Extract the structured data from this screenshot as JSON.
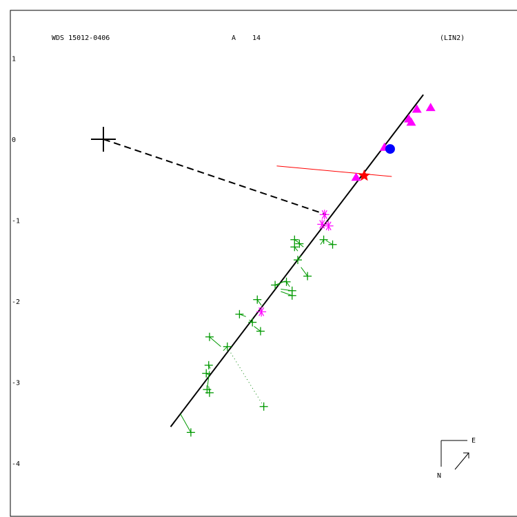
{
  "header": {
    "id": "WDS 15012-0406",
    "component": "A",
    "number": "14",
    "tag": "(LIN2)"
  },
  "compass": {
    "east": "E",
    "north": "N"
  },
  "chart_data": {
    "type": "scatter",
    "ylim": [
      -4.6,
      1.6
    ],
    "y_ticks": [
      1,
      0,
      -1,
      -2,
      -3,
      -4
    ],
    "primary": {
      "x": 0,
      "y": 0
    },
    "orbit_line": {
      "start": [
        0.83,
        -3.55
      ],
      "end": [
        3.95,
        0.55
      ],
      "color": "#000000"
    },
    "periastron_line": {
      "start": [
        0.0,
        0.0
      ],
      "end": [
        2.75,
        -0.93
      ],
      "color": "#000000"
    },
    "red_line": {
      "start": [
        2.14,
        -0.33
      ],
      "end": [
        3.56,
        -0.46
      ],
      "color": "#ff0000"
    },
    "dotted_line": {
      "start": [
        1.55,
        -2.6
      ],
      "end": [
        1.98,
        -3.3
      ],
      "color": "#008000"
    },
    "series": [
      {
        "marker": "plus",
        "color": "#009900",
        "points": [
          {
            "x": 2.36,
            "y": -1.24,
            "rx": 2.43,
            "ry": -1.29
          },
          {
            "x": 2.42,
            "y": -1.29,
            "rx": 2.47,
            "ry": -1.33
          },
          {
            "x": 2.36,
            "y": -1.33,
            "rx": 2.4,
            "ry": -1.38
          },
          {
            "x": 2.72,
            "y": -1.24,
            "rx": 2.68,
            "ry": -1.3
          },
          {
            "x": 2.83,
            "y": -1.3,
            "rx": 2.75,
            "ry": -1.25
          },
          {
            "x": 2.4,
            "y": -1.49,
            "rx": 2.44,
            "ry": -1.44
          },
          {
            "x": 2.52,
            "y": -1.69,
            "rx": 2.44,
            "ry": -1.58
          },
          {
            "x": 2.12,
            "y": -1.8,
            "rx": 2.25,
            "ry": -1.75
          },
          {
            "x": 2.26,
            "y": -1.76,
            "rx": 2.3,
            "ry": -1.82
          },
          {
            "x": 2.33,
            "y": -1.87,
            "rx": 2.19,
            "ry": -1.85
          },
          {
            "x": 2.33,
            "y": -1.93,
            "rx": 2.19,
            "ry": -1.88
          },
          {
            "x": 1.9,
            "y": -1.98,
            "rx": 1.95,
            "ry": -2.05
          },
          {
            "x": 1.68,
            "y": -2.16,
            "rx": 1.76,
            "ry": -2.19
          },
          {
            "x": 1.84,
            "y": -2.26,
            "rx": 1.8,
            "ry": -2.23
          },
          {
            "x": 1.94,
            "y": -2.37,
            "rx": 1.86,
            "ry": -2.31
          },
          {
            "x": 1.31,
            "y": -2.44,
            "rx": 1.45,
            "ry": -2.56
          },
          {
            "x": 1.53,
            "y": -2.56,
            "rx": 1.48,
            "ry": -2.61
          },
          {
            "x": 1.3,
            "y": -2.79,
            "rx": 1.32,
            "ry": -2.83
          },
          {
            "x": 1.27,
            "y": -2.89,
            "rx": 1.3,
            "ry": -2.91
          },
          {
            "x": 1.28,
            "y": -3.09,
            "rx": 1.31,
            "ry": -2.86
          },
          {
            "x": 1.31,
            "y": -3.13,
            "rx": 1.3,
            "ry": -3.05
          },
          {
            "x": 1.98,
            "y": -3.3,
            "rx": 1.98,
            "ry": -3.3
          },
          {
            "x": 1.08,
            "y": -3.62,
            "rx": 0.95,
            "ry": -3.39
          }
        ]
      },
      {
        "marker": "asterisk",
        "color": "#ff00ff",
        "points": [
          {
            "x": 2.73,
            "y": -0.93
          },
          {
            "x": 2.7,
            "y": -1.05
          },
          {
            "x": 2.78,
            "y": -1.07
          },
          {
            "x": 1.95,
            "y": -2.13
          }
        ]
      },
      {
        "marker": "triangle",
        "color": "#ff00ff",
        "points": [
          {
            "x": 3.47,
            "y": -0.1
          },
          {
            "x": 3.12,
            "y": -0.47
          },
          {
            "x": 3.77,
            "y": 0.25
          },
          {
            "x": 3.8,
            "y": 0.21
          },
          {
            "x": 3.87,
            "y": 0.37
          },
          {
            "x": 4.04,
            "y": 0.39
          }
        ]
      },
      {
        "marker": "star",
        "color": "#ff0000",
        "points": [
          {
            "x": 3.22,
            "y": -0.45
          }
        ]
      },
      {
        "marker": "circle",
        "color": "#0000ff",
        "points": [
          {
            "x": 3.54,
            "y": -0.12
          }
        ]
      }
    ]
  }
}
